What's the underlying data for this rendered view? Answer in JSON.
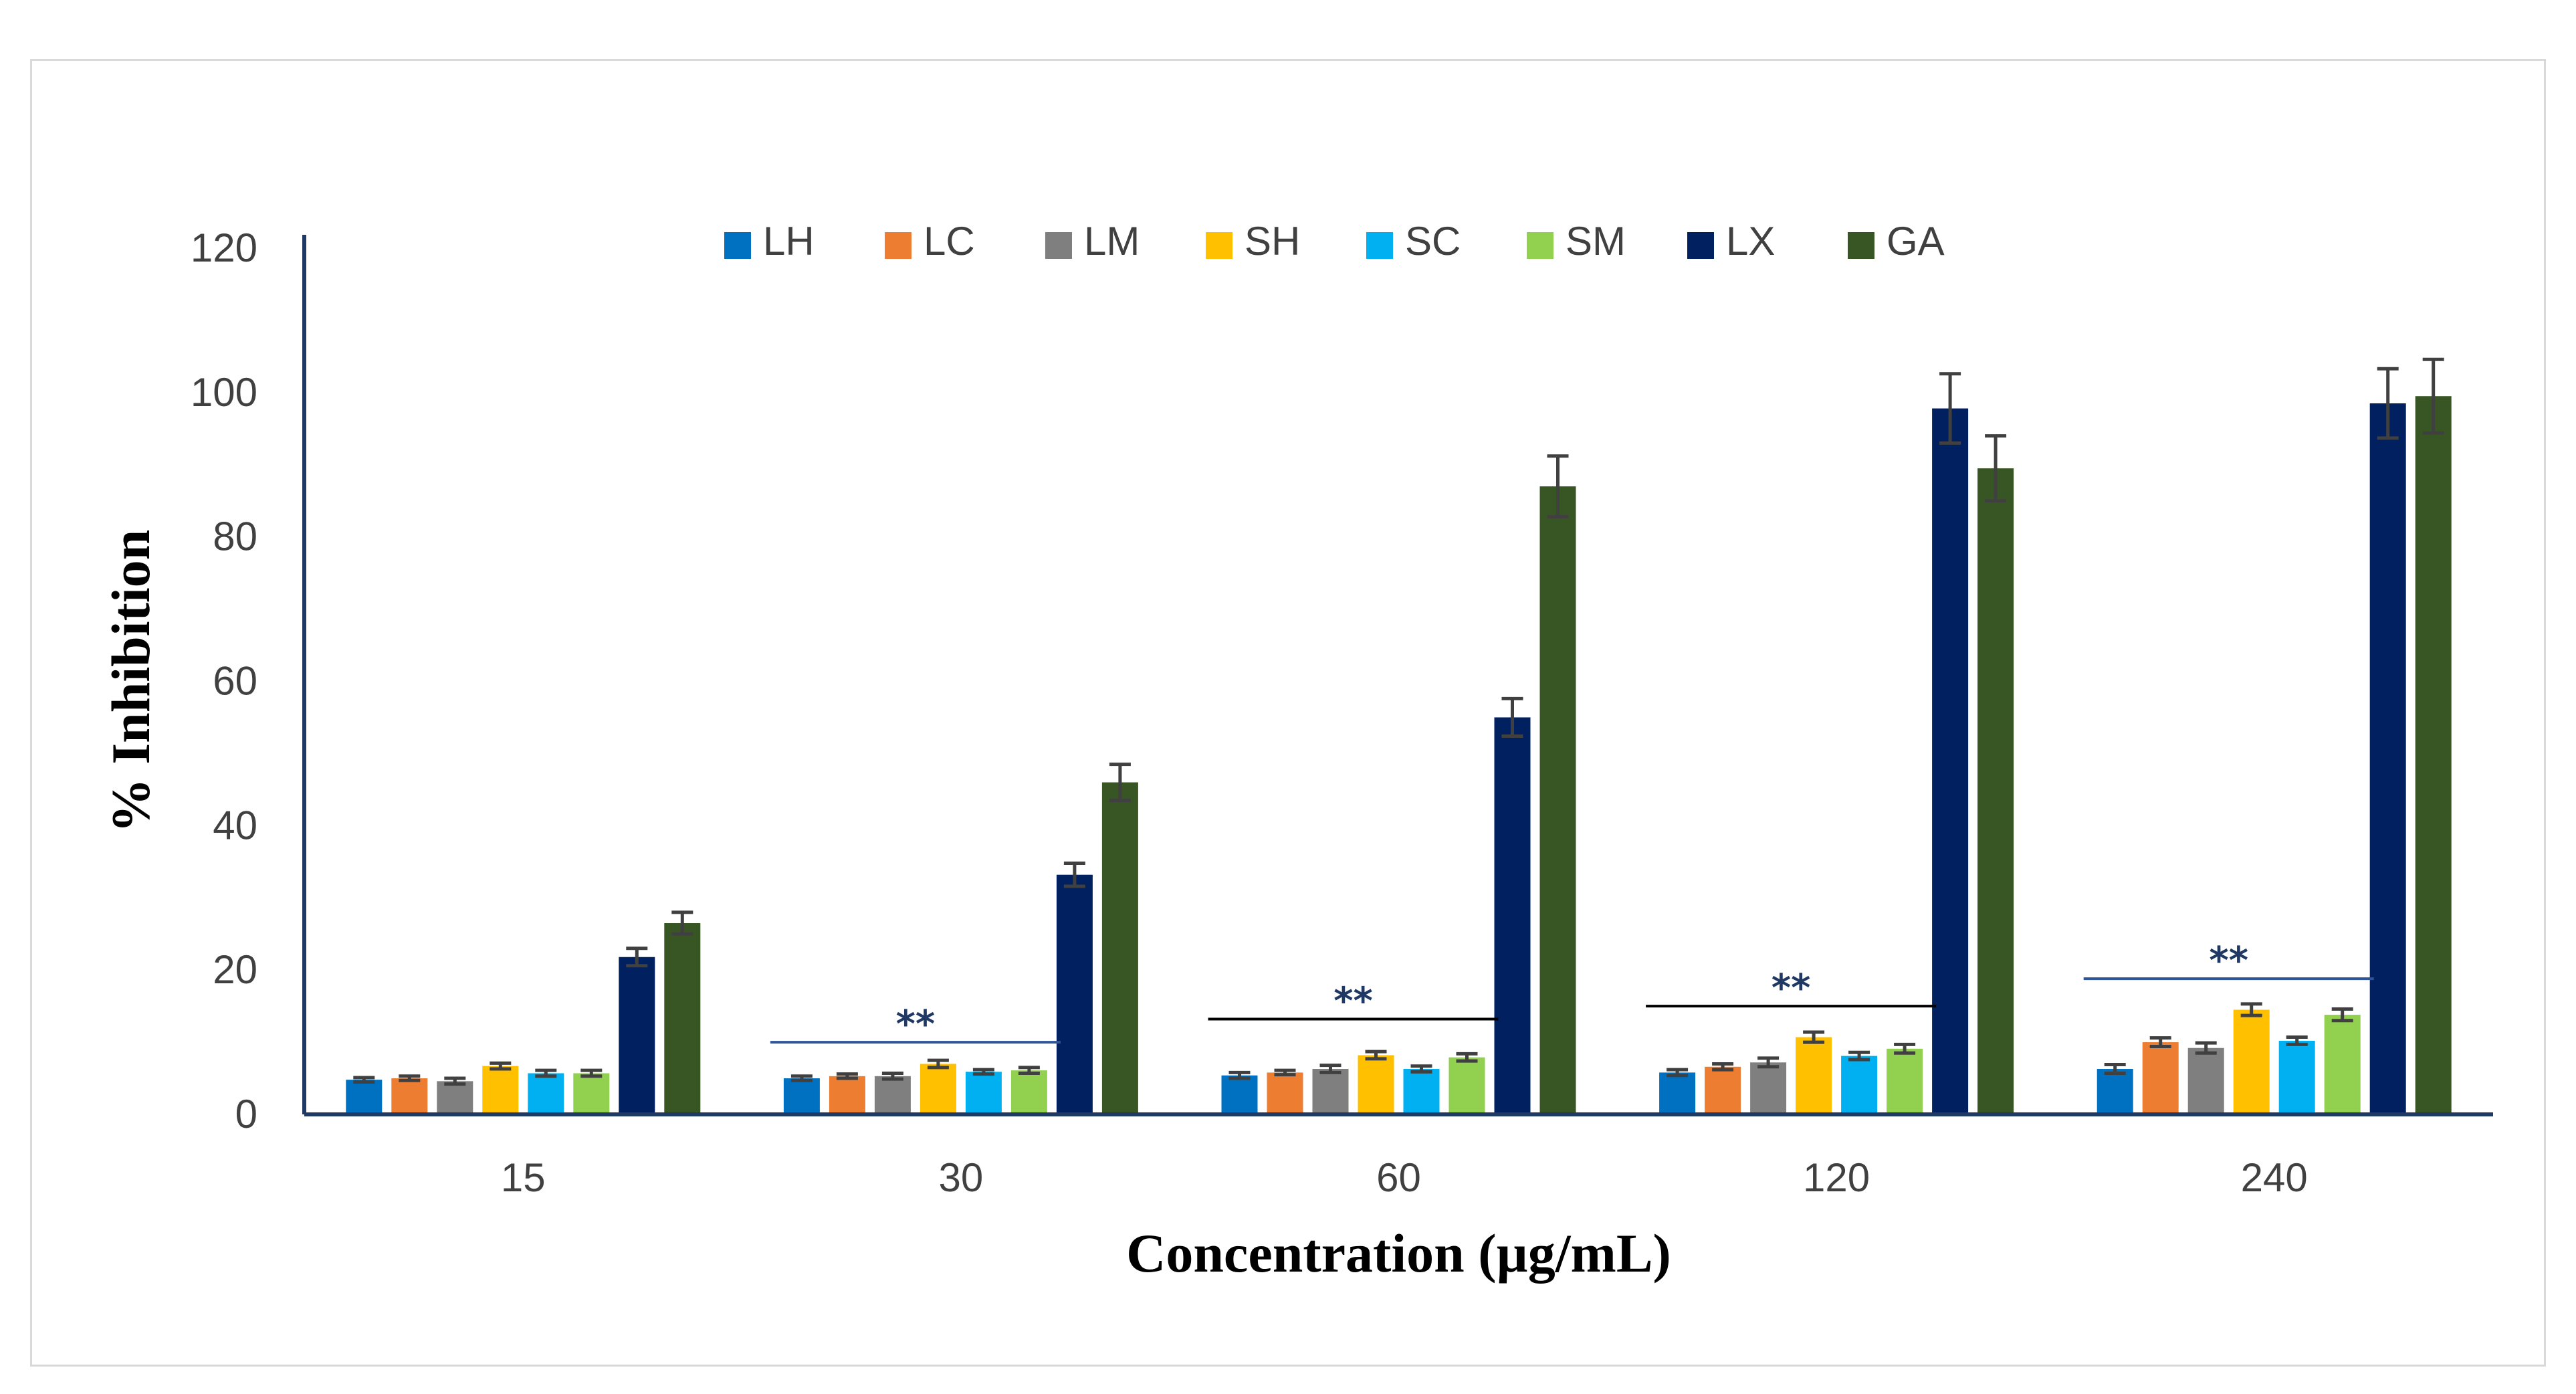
{
  "chart_data": {
    "type": "bar",
    "xlabel": "Concentration (µg/mL)",
    "ylabel": "% Inhibition",
    "ylim": [
      0,
      120
    ],
    "yticks": [
      0,
      20,
      40,
      60,
      80,
      100,
      120
    ],
    "categories": [
      "15",
      "30",
      "60",
      "120",
      "240"
    ],
    "legend_position": "top",
    "grid": false,
    "series": [
      {
        "name": "LH",
        "color": "#0070c0",
        "values": [
          4.8,
          5.0,
          5.4,
          5.8,
          6.3
        ],
        "errors": [
          0.3,
          0.3,
          0.4,
          0.4,
          0.6
        ]
      },
      {
        "name": "LC",
        "color": "#ed7d31",
        "values": [
          5.0,
          5.3,
          5.8,
          6.6,
          10.0
        ],
        "errors": [
          0.3,
          0.3,
          0.3,
          0.4,
          0.6
        ]
      },
      {
        "name": "LM",
        "color": "#7f7f7f",
        "values": [
          4.6,
          5.3,
          6.3,
          7.2,
          9.2
        ],
        "errors": [
          0.4,
          0.4,
          0.5,
          0.6,
          0.7
        ]
      },
      {
        "name": "SH",
        "color": "#ffc000",
        "values": [
          6.7,
          7.0,
          8.2,
          10.7,
          14.5
        ],
        "errors": [
          0.4,
          0.5,
          0.5,
          0.7,
          0.8
        ]
      },
      {
        "name": "SC",
        "color": "#00b0f0",
        "values": [
          5.7,
          5.9,
          6.3,
          8.1,
          10.2
        ],
        "errors": [
          0.4,
          0.3,
          0.4,
          0.5,
          0.5
        ]
      },
      {
        "name": "SM",
        "color": "#92d050",
        "values": [
          5.7,
          6.1,
          7.9,
          9.1,
          13.8
        ],
        "errors": [
          0.4,
          0.4,
          0.5,
          0.6,
          0.8
        ]
      },
      {
        "name": "LX",
        "color": "#002060",
        "values": [
          21.8,
          33.2,
          55.0,
          97.8,
          98.5
        ],
        "errors": [
          1.2,
          1.6,
          2.6,
          4.8,
          4.8
        ]
      },
      {
        "name": "GA",
        "color": "#375623",
        "values": [
          26.5,
          46.0,
          87.0,
          89.5,
          99.5
        ],
        "errors": [
          1.5,
          2.5,
          4.2,
          4.5,
          5.1
        ]
      }
    ],
    "annotations": [
      {
        "text": "**",
        "category": "30",
        "y": 10.0,
        "line_color": "#2f5597"
      },
      {
        "text": "**",
        "category": "60",
        "y": 13.2,
        "line_color": "#000000"
      },
      {
        "text": "**",
        "category": "120",
        "y": 15.0,
        "line_color": "#000000"
      },
      {
        "text": "**",
        "category": "240",
        "y": 18.8,
        "line_color": "#2f5597"
      }
    ],
    "colors": {
      "axis": "#1f3864",
      "error_bar": "#404040",
      "annotation_text": "#1f3864"
    }
  }
}
